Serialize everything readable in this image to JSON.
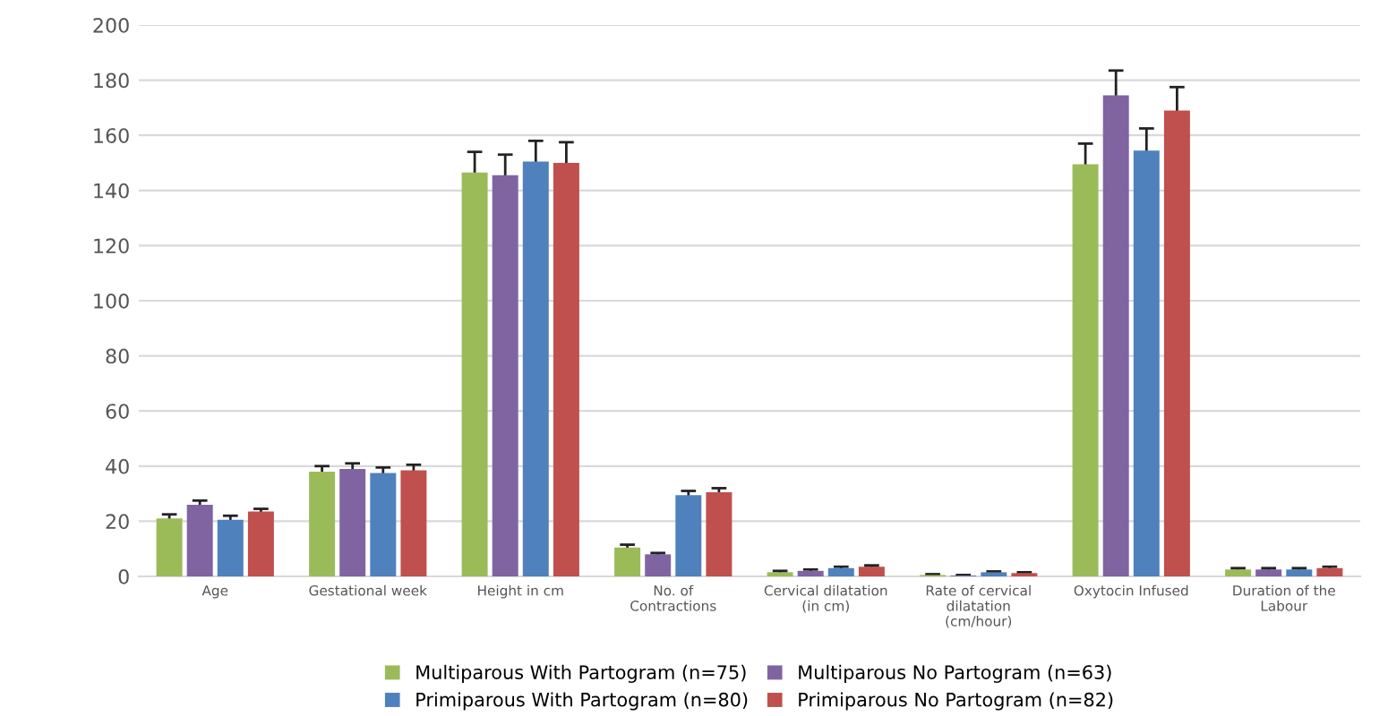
{
  "chart_data": {
    "type": "bar",
    "categories": [
      "Age",
      "Gestational week",
      "Height in cm",
      "No. of\nContractions",
      "Cervical dilatation\n(in cm)",
      "Rate of cervical\ndilatation\n(cm/hour)",
      "Oxytocin Infused",
      "Duration of the\nLabour"
    ],
    "series": [
      {
        "name": "Multiparous With Partogram (n=75)",
        "color": "#9bbb59",
        "values": [
          21,
          38,
          146.5,
          10.5,
          1.5,
          0.5,
          149.5,
          2.5
        ],
        "errors": [
          1.5,
          2,
          7.5,
          1,
          0.5,
          0.3,
          7.5,
          0.5
        ]
      },
      {
        "name": "Multiparous No Partogram (n=63)",
        "color": "#8064a2",
        "values": [
          26,
          39,
          145.5,
          8,
          2,
          0.3,
          174.5,
          2.5
        ],
        "errors": [
          1.5,
          2,
          7.5,
          0.5,
          0.5,
          0.2,
          9,
          0.5
        ]
      },
      {
        "name": "Primiparous With Partogram (n=80)",
        "color": "#4f81bd",
        "values": [
          20.5,
          37.5,
          150.5,
          29.5,
          3,
          1.5,
          154.5,
          2.5
        ],
        "errors": [
          1.5,
          2,
          7.5,
          1.5,
          0.5,
          0.3,
          8,
          0.5
        ]
      },
      {
        "name": "Primiparous No Partogram (n=82)",
        "color": "#c0504d",
        "values": [
          23.5,
          38.5,
          150,
          30.5,
          3.5,
          1.2,
          169,
          3
        ],
        "errors": [
          1,
          2,
          7.5,
          1.5,
          0.5,
          0.3,
          8.5,
          0.5
        ]
      }
    ],
    "ylim": [
      0,
      200
    ],
    "yticks": [
      0,
      20,
      40,
      60,
      80,
      100,
      120,
      140,
      160,
      180,
      200
    ],
    "grid": "y",
    "legend": "bottom"
  }
}
